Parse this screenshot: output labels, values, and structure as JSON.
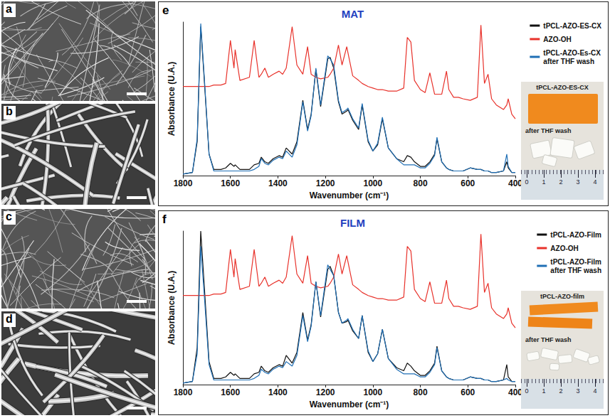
{
  "chart_data": [
    {
      "type": "line",
      "panel_label": "e",
      "title": "MAT",
      "x_label": "Wavenumber (cm⁻¹)",
      "y_label": "Absorbance (U.A.)",
      "xlim": [
        1800,
        400
      ],
      "xticks": [
        1800,
        1600,
        1400,
        1200,
        1000,
        800,
        600,
        400
      ],
      "ylim": [
        0,
        100
      ],
      "tick_labels": "x",
      "grid": false,
      "legend": "right",
      "x": [
        1800,
        1760,
        1740,
        1725,
        1710,
        1690,
        1670,
        1640,
        1620,
        1600,
        1585,
        1580,
        1560,
        1520,
        1500,
        1480,
        1470,
        1455,
        1440,
        1420,
        1395,
        1380,
        1365,
        1340,
        1320,
        1295,
        1275,
        1260,
        1240,
        1220,
        1190,
        1180,
        1165,
        1145,
        1130,
        1110,
        1105,
        1085,
        1060,
        1045,
        1020,
        1000,
        980,
        960,
        935,
        900,
        870,
        855,
        840,
        825,
        800,
        780,
        760,
        740,
        730,
        710,
        690,
        680,
        660,
        640,
        620,
        590,
        560,
        545,
        530,
        515,
        500,
        480,
        450,
        436,
        430,
        415,
        400
      ],
      "series": [
        {
          "name": "tPCL-AZO-ES-CX",
          "color": "#111111",
          "values": [
            1,
            2,
            22,
            97,
            62,
            14,
            4,
            4,
            5,
            8,
            6,
            7,
            4,
            4,
            7,
            8,
            12,
            9,
            8,
            11,
            13,
            12,
            18,
            14,
            22,
            49,
            30,
            40,
            69,
            45,
            76,
            77,
            70,
            48,
            40,
            42,
            43,
            36,
            30,
            46,
            22,
            16,
            20,
            37,
            18,
            11,
            9,
            13,
            12,
            9,
            6,
            6,
            9,
            14,
            24,
            9,
            5,
            4,
            3,
            3,
            3,
            5,
            4,
            4,
            3,
            3,
            2,
            2,
            3,
            9,
            5,
            2,
            2
          ]
        },
        {
          "name": "AZO-OH",
          "color": "#e8322b",
          "values": [
            58,
            58,
            58,
            58,
            58,
            58,
            59,
            59,
            60,
            88,
            70,
            82,
            62,
            64,
            88,
            64,
            66,
            70,
            64,
            66,
            68,
            66,
            70,
            97,
            72,
            66,
            84,
            66,
            64,
            63,
            64,
            66,
            70,
            85,
            72,
            84,
            80,
            65,
            62,
            60,
            58,
            57,
            56,
            56,
            55,
            55,
            57,
            90,
            87,
            62,
            56,
            54,
            67,
            53,
            53,
            53,
            68,
            56,
            51,
            51,
            50,
            49,
            51,
            98,
            60,
            66,
            50,
            46,
            43,
            46,
            50,
            40,
            37
          ]
        },
        {
          "name": "tPCL-AZO-Es-CX after THF wash",
          "color": "#1f6fb5",
          "values": [
            1,
            2,
            24,
            99,
            64,
            14,
            3,
            3,
            3,
            3,
            3,
            3,
            3,
            3,
            4,
            6,
            11,
            8,
            7,
            10,
            12,
            11,
            16,
            12,
            20,
            48,
            29,
            39,
            70,
            46,
            78,
            76,
            72,
            49,
            41,
            43,
            44,
            37,
            31,
            47,
            23,
            16,
            21,
            38,
            18,
            11,
            7,
            7,
            7,
            7,
            5,
            5,
            8,
            13,
            25,
            9,
            5,
            4,
            3,
            3,
            3,
            5,
            4,
            4,
            3,
            3,
            2,
            2,
            3,
            14,
            6,
            2,
            2
          ]
        }
      ],
      "photo": {
        "labels": [
          "tPCL-AZO-ES-CX",
          "after THF wash"
        ],
        "ruler": [
          0,
          1,
          2,
          3,
          4
        ]
      }
    },
    {
      "type": "line",
      "panel_label": "f",
      "title": "FILM",
      "x_label": "Wavenumber (cm⁻¹)",
      "y_label": "Absorbance (U.A.)",
      "xlim": [
        1800,
        400
      ],
      "xticks": [
        1800,
        1600,
        1400,
        1200,
        1000,
        800,
        600,
        400
      ],
      "ylim": [
        0,
        100
      ],
      "tick_labels": "x",
      "grid": false,
      "legend": "right",
      "x": [
        1800,
        1760,
        1740,
        1725,
        1710,
        1690,
        1670,
        1640,
        1620,
        1600,
        1585,
        1580,
        1560,
        1520,
        1500,
        1480,
        1470,
        1455,
        1440,
        1420,
        1395,
        1380,
        1365,
        1340,
        1320,
        1295,
        1275,
        1260,
        1240,
        1220,
        1190,
        1180,
        1165,
        1145,
        1130,
        1110,
        1105,
        1085,
        1060,
        1045,
        1020,
        1000,
        980,
        960,
        935,
        900,
        870,
        855,
        840,
        825,
        800,
        780,
        760,
        740,
        730,
        710,
        690,
        680,
        660,
        640,
        620,
        590,
        560,
        545,
        530,
        515,
        500,
        480,
        450,
        436,
        430,
        415,
        400
      ],
      "series": [
        {
          "name": "tPCL-AZO-Film",
          "color": "#111111",
          "values": [
            1,
            2,
            24,
            100,
            64,
            15,
            4,
            4,
            5,
            8,
            6,
            7,
            4,
            4,
            7,
            8,
            12,
            9,
            8,
            11,
            13,
            12,
            19,
            14,
            21,
            47,
            29,
            39,
            67,
            44,
            75,
            77,
            71,
            47,
            40,
            41,
            42,
            35,
            30,
            45,
            21,
            15,
            20,
            36,
            17,
            11,
            9,
            14,
            12,
            9,
            6,
            6,
            9,
            14,
            25,
            9,
            5,
            4,
            3,
            3,
            3,
            5,
            4,
            4,
            3,
            3,
            2,
            2,
            3,
            13,
            5,
            2,
            2
          ]
        },
        {
          "name": "AZO-OH",
          "color": "#e8322b",
          "values": [
            58,
            58,
            58,
            58,
            58,
            58,
            59,
            59,
            60,
            88,
            70,
            82,
            62,
            64,
            88,
            64,
            66,
            70,
            64,
            66,
            68,
            66,
            70,
            97,
            72,
            66,
            84,
            66,
            64,
            63,
            64,
            66,
            70,
            85,
            72,
            84,
            80,
            65,
            62,
            60,
            58,
            57,
            56,
            56,
            55,
            55,
            57,
            90,
            87,
            62,
            56,
            54,
            67,
            53,
            53,
            53,
            68,
            56,
            51,
            51,
            50,
            49,
            51,
            98,
            60,
            66,
            50,
            46,
            43,
            46,
            50,
            40,
            37
          ]
        },
        {
          "name": "tPCL-AZO-Film after THF wash",
          "color": "#1f6fb5",
          "values": [
            1,
            2,
            20,
            90,
            58,
            13,
            3,
            3,
            3,
            3,
            3,
            3,
            3,
            3,
            4,
            6,
            10,
            8,
            7,
            10,
            12,
            11,
            15,
            12,
            19,
            45,
            28,
            38,
            67,
            45,
            78,
            75,
            71,
            47,
            40,
            42,
            43,
            36,
            30,
            45,
            22,
            15,
            20,
            36,
            17,
            10,
            7,
            7,
            7,
            7,
            5,
            5,
            8,
            13,
            24,
            9,
            5,
            4,
            3,
            3,
            3,
            5,
            4,
            4,
            3,
            3,
            2,
            2,
            3,
            4,
            3,
            2,
            2
          ]
        }
      ],
      "photo": {
        "labels": [
          "tPCL-AZO-film",
          "after THF wash"
        ],
        "ruler": [
          0,
          1,
          2,
          3,
          4
        ]
      }
    }
  ],
  "images": [
    {
      "label": "a"
    },
    {
      "label": "b"
    },
    {
      "label": "c"
    },
    {
      "label": "d"
    }
  ]
}
